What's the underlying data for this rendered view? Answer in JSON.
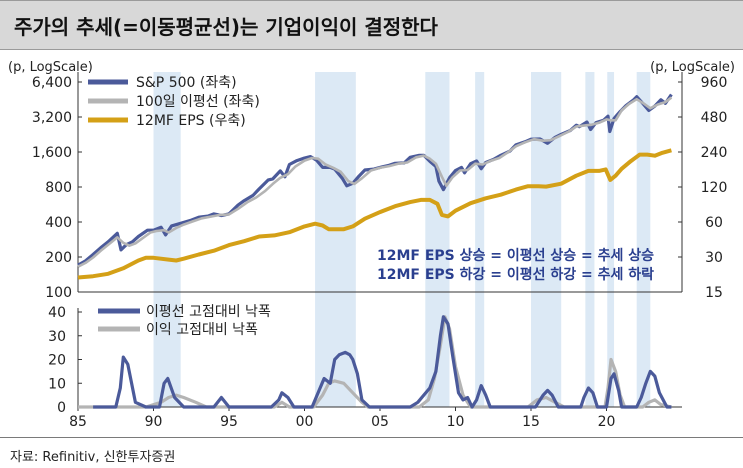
{
  "title": "주가의 추세(=이동평균선)는 기업이익이 결정한다",
  "source": "자료: Refinitiv, 신한투자증권",
  "colors": {
    "title_bg": "#d8d8d8",
    "shade": "#dce9f5",
    "sp500": "#4b5a9a",
    "ma100": "#b4b4b4",
    "eps": "#d4a017",
    "text_blue": "#2a3f8f"
  },
  "chart_data": [
    {
      "type": "line",
      "panel": "top",
      "y_scale": "log",
      "ylabel_left": "(p, LogScale)",
      "ylabel_right": "(p, LogScale)",
      "ylim_left": [
        100,
        6400
      ],
      "ylim_right": [
        15,
        960
      ],
      "yticks_left": [
        "6,400",
        "3,200",
        "1,600",
        "800",
        "400",
        "200",
        "100"
      ],
      "yticks_left_values": [
        6400,
        3200,
        1600,
        800,
        400,
        200,
        100
      ],
      "yticks_right": [
        "960",
        "480",
        "240",
        "120",
        "60",
        "30",
        "15"
      ],
      "yticks_right_values": [
        960,
        480,
        240,
        120,
        60,
        30,
        15
      ],
      "xlim": [
        1985,
        2025
      ],
      "legend": [
        {
          "label": "S&P 500 (좌축)",
          "series": "sp500"
        },
        {
          "label": "100일 이평선 (좌축)",
          "series": "ma100"
        },
        {
          "label": "12MF EPS (우축)",
          "series": "eps"
        }
      ],
      "annotations": [
        "12MF EPS 상승 = 이평선 상승 = 추세 상승",
        "12MF EPS 하강 = 이평선 하강 = 추세 하락"
      ],
      "series": [
        {
          "name": "S&P 500 (좌축)",
          "axis": "left",
          "color": "#4b5a9a",
          "x": [
            1985.0,
            1985.5,
            1986.0,
            1986.5,
            1987.0,
            1987.6,
            1987.85,
            1988.2,
            1988.6,
            1989.0,
            1989.6,
            1990.0,
            1990.5,
            1990.8,
            1991.2,
            1991.8,
            1992.5,
            1993.0,
            1993.6,
            1994.0,
            1994.5,
            1995.0,
            1995.6,
            1996.0,
            1996.6,
            1997.0,
            1997.6,
            1997.9,
            1998.4,
            1998.7,
            1999.0,
            1999.5,
            2000.0,
            2000.4,
            2000.8,
            2001.2,
            2001.7,
            2002.0,
            2002.5,
            2002.8,
            2003.2,
            2003.6,
            2004.0,
            2004.6,
            2005.0,
            2005.6,
            2006.0,
            2006.6,
            2007.0,
            2007.6,
            2007.9,
            2008.3,
            2008.7,
            2008.9,
            2009.2,
            2009.6,
            2010.0,
            2010.4,
            2010.6,
            2011.0,
            2011.4,
            2011.7,
            2012.0,
            2012.5,
            2013.0,
            2013.6,
            2014.0,
            2014.6,
            2015.0,
            2015.6,
            2016.1,
            2016.6,
            2017.0,
            2017.6,
            2018.0,
            2018.2,
            2018.7,
            2018.95,
            2019.3,
            2019.8,
            2020.1,
            2020.22,
            2020.5,
            2020.9,
            2021.3,
            2021.8,
            2022.0,
            2022.4,
            2022.8,
            2023.2,
            2023.6,
            2023.9,
            2024.3
          ],
          "y": [
            170,
            185,
            210,
            240,
            270,
            320,
            230,
            255,
            270,
            300,
            340,
            340,
            360,
            310,
            370,
            390,
            415,
            440,
            450,
            470,
            455,
            470,
            560,
            610,
            680,
            770,
            920,
            940,
            1100,
            980,
            1250,
            1350,
            1420,
            1460,
            1360,
            1180,
            1180,
            1140,
            950,
            820,
            860,
            990,
            1120,
            1140,
            1180,
            1230,
            1280,
            1290,
            1440,
            1500,
            1500,
            1330,
            1200,
            900,
            760,
            960,
            1110,
            1180,
            1060,
            1270,
            1340,
            1150,
            1300,
            1380,
            1500,
            1630,
            1840,
            1960,
            2060,
            2070,
            1900,
            2140,
            2270,
            2450,
            2720,
            2640,
            2900,
            2500,
            2860,
            3000,
            3250,
            2400,
            3100,
            3560,
            4020,
            4500,
            4780,
            4200,
            3650,
            3970,
            4500,
            4200,
            5000
          ]
        },
        {
          "name": "100일 이평선 (좌축)",
          "axis": "left",
          "color": "#b4b4b4",
          "x": [
            1985.0,
            1985.5,
            1986.0,
            1986.5,
            1987.0,
            1987.6,
            1988.0,
            1988.4,
            1988.8,
            1989.2,
            1989.8,
            1990.2,
            1990.7,
            1991.0,
            1991.5,
            1992.0,
            1992.6,
            1993.2,
            1993.8,
            1994.4,
            1995.0,
            1995.6,
            1996.2,
            1996.8,
            1997.4,
            1997.9,
            1998.4,
            1998.9,
            1999.4,
            2000.0,
            2000.5,
            2000.9,
            2001.4,
            2001.9,
            2002.4,
            2002.9,
            2003.3,
            2003.8,
            2004.4,
            2005.0,
            2005.6,
            2006.2,
            2006.8,
            2007.4,
            2007.9,
            2008.3,
            2008.7,
            2009.1,
            2009.4,
            2009.8,
            2010.3,
            2010.8,
            2011.3,
            2011.8,
            2012.3,
            2012.9,
            2013.5,
            2014.0,
            2014.6,
            2015.2,
            2015.8,
            2016.3,
            2016.9,
            2017.5,
            2018.0,
            2018.5,
            2019.0,
            2019.5,
            2020.0,
            2020.3,
            2020.6,
            2021.0,
            2021.5,
            2022.0,
            2022.5,
            2022.9,
            2023.4,
            2023.9,
            2024.3
          ],
          "y": [
            165,
            178,
            198,
            226,
            255,
            295,
            265,
            250,
            262,
            285,
            325,
            335,
            340,
            325,
            355,
            380,
            405,
            430,
            445,
            460,
            465,
            520,
            590,
            650,
            740,
            850,
            960,
            1030,
            1200,
            1350,
            1420,
            1400,
            1250,
            1170,
            1080,
            900,
            850,
            950,
            1110,
            1170,
            1210,
            1270,
            1300,
            1440,
            1490,
            1400,
            1270,
            980,
            820,
            970,
            1110,
            1120,
            1270,
            1250,
            1340,
            1420,
            1600,
            1790,
            1940,
            2060,
            2000,
            2020,
            2200,
            2400,
            2650,
            2700,
            2750,
            2850,
            3050,
            3000,
            3000,
            3650,
            4150,
            4550,
            4150,
            3800,
            4100,
            4300,
            4700
          ]
        },
        {
          "name": "12MF EPS (우축)",
          "axis": "right",
          "color": "#d4a017",
          "x": [
            1985.0,
            1986.0,
            1987.0,
            1988.0,
            1989.0,
            1989.5,
            1990.0,
            1991.0,
            1991.5,
            1992.0,
            1993.0,
            1994.0,
            1995.0,
            1996.0,
            1997.0,
            1998.0,
            1999.0,
            2000.0,
            2000.7,
            2001.2,
            2001.6,
            2002.0,
            2002.6,
            2003.2,
            2004.0,
            2005.0,
            2006.0,
            2007.0,
            2007.7,
            2008.3,
            2008.8,
            2009.1,
            2009.5,
            2010.0,
            2011.0,
            2012.0,
            2013.0,
            2014.0,
            2014.8,
            2015.5,
            2016.0,
            2017.0,
            2018.0,
            2018.8,
            2019.5,
            2019.95,
            2020.25,
            2020.6,
            2021.0,
            2021.6,
            2022.2,
            2022.7,
            2023.2,
            2023.7,
            2024.3
          ],
          "y": [
            20,
            20.5,
            21.5,
            24,
            28,
            29.5,
            29.5,
            28.5,
            28,
            29,
            31.5,
            34,
            38,
            41,
            45,
            46,
            49,
            55,
            58,
            56,
            52,
            52,
            52,
            55,
            64,
            73,
            82,
            89,
            93,
            93,
            86,
            69,
            67,
            75,
            87,
            96,
            103,
            114,
            122,
            122,
            121,
            128,
            150,
            165,
            165,
            170,
            138,
            150,
            172,
            200,
            228,
            228,
            223,
            236,
            248
          ]
        }
      ]
    },
    {
      "type": "line",
      "panel": "bottom",
      "ylim": [
        0,
        40
      ],
      "yticks": [
        0,
        10,
        20,
        30,
        40
      ],
      "xlim": [
        1985,
        2025
      ],
      "xticks": [
        "85",
        "90",
        "95",
        "00",
        "05",
        "10",
        "15",
        "20"
      ],
      "xticks_values": [
        1985,
        1990,
        1995,
        2000,
        2005,
        2010,
        2015,
        2020
      ],
      "legend": [
        {
          "label": "이평선 고점대비 낙폭",
          "series": "ma_drawdown"
        },
        {
          "label": "이익 고점대비 낙폭",
          "series": "eps_drawdown"
        }
      ],
      "series": [
        {
          "name": "이평선 고점대비 낙폭",
          "color": "#4b5a9a",
          "x": [
            1986.0,
            1987.5,
            1987.8,
            1988.0,
            1988.3,
            1988.8,
            1989.5,
            1990.4,
            1990.7,
            1990.95,
            1991.4,
            1992.0,
            1994.0,
            1994.5,
            1995.0,
            1997.8,
            1998.3,
            1998.5,
            1998.9,
            1999.3,
            2000.5,
            2000.9,
            2001.3,
            2001.7,
            2002.0,
            2002.3,
            2002.7,
            2003.0,
            2003.2,
            2003.5,
            2003.8,
            2004.3,
            2006.5,
            2007.0,
            2007.5,
            2007.9,
            2008.3,
            2008.7,
            2009.0,
            2009.2,
            2009.5,
            2009.8,
            2010.2,
            2010.5,
            2010.8,
            2011.1,
            2011.4,
            2011.7,
            2012.0,
            2012.3,
            2015.3,
            2015.8,
            2016.1,
            2016.4,
            2016.8,
            2018.3,
            2018.5,
            2018.8,
            2019.1,
            2019.4,
            2020.0,
            2020.3,
            2020.5,
            2020.8,
            2021.0,
            2022.0,
            2022.3,
            2022.6,
            2022.9,
            2023.2,
            2023.5,
            2024.0,
            2024.3
          ],
          "y": [
            0,
            0,
            8,
            21,
            18,
            2,
            0,
            0,
            10,
            12,
            4,
            0,
            0,
            4,
            0,
            0,
            3,
            6,
            4,
            0,
            0,
            6,
            12,
            10,
            20,
            22,
            23,
            22,
            20,
            14,
            3,
            0,
            0,
            0,
            2,
            5,
            8,
            15,
            30,
            38,
            35,
            22,
            6,
            3,
            4,
            0,
            3,
            9,
            5,
            0,
            0,
            5,
            7,
            5,
            0,
            0,
            4,
            8,
            6,
            0,
            0,
            12,
            14,
            7,
            0,
            0,
            4,
            10,
            15,
            13,
            6,
            0,
            0
          ]
        },
        {
          "name": "이익 고점대비 낙폭",
          "color": "#b4b4b4",
          "x": [
            1985.0,
            1989.5,
            1990.5,
            1991.0,
            1991.5,
            1992.0,
            1992.8,
            1993.5,
            1998.0,
            1998.5,
            1999.0,
            2000.6,
            2001.2,
            2001.6,
            2002.0,
            2002.6,
            2003.2,
            2003.8,
            2004.2,
            2007.6,
            2008.2,
            2008.6,
            2009.0,
            2009.3,
            2009.6,
            2010.0,
            2010.5,
            2011.0,
            2014.8,
            2015.4,
            2016.0,
            2016.6,
            2017.2,
            2019.9,
            2020.1,
            2020.3,
            2020.6,
            2020.9,
            2021.2,
            2022.4,
            2022.8,
            2023.2,
            2023.6,
            2024.3
          ],
          "y": [
            0,
            0,
            2,
            4,
            5,
            4,
            2,
            0,
            0,
            2,
            0,
            0,
            5,
            10,
            11,
            10,
            6,
            2,
            0,
            0,
            3,
            12,
            26,
            38,
            33,
            17,
            5,
            0,
            0,
            3,
            4,
            2,
            0,
            0,
            8,
            20,
            15,
            5,
            0,
            0,
            2,
            3,
            1,
            0
          ]
        }
      ]
    }
  ]
}
